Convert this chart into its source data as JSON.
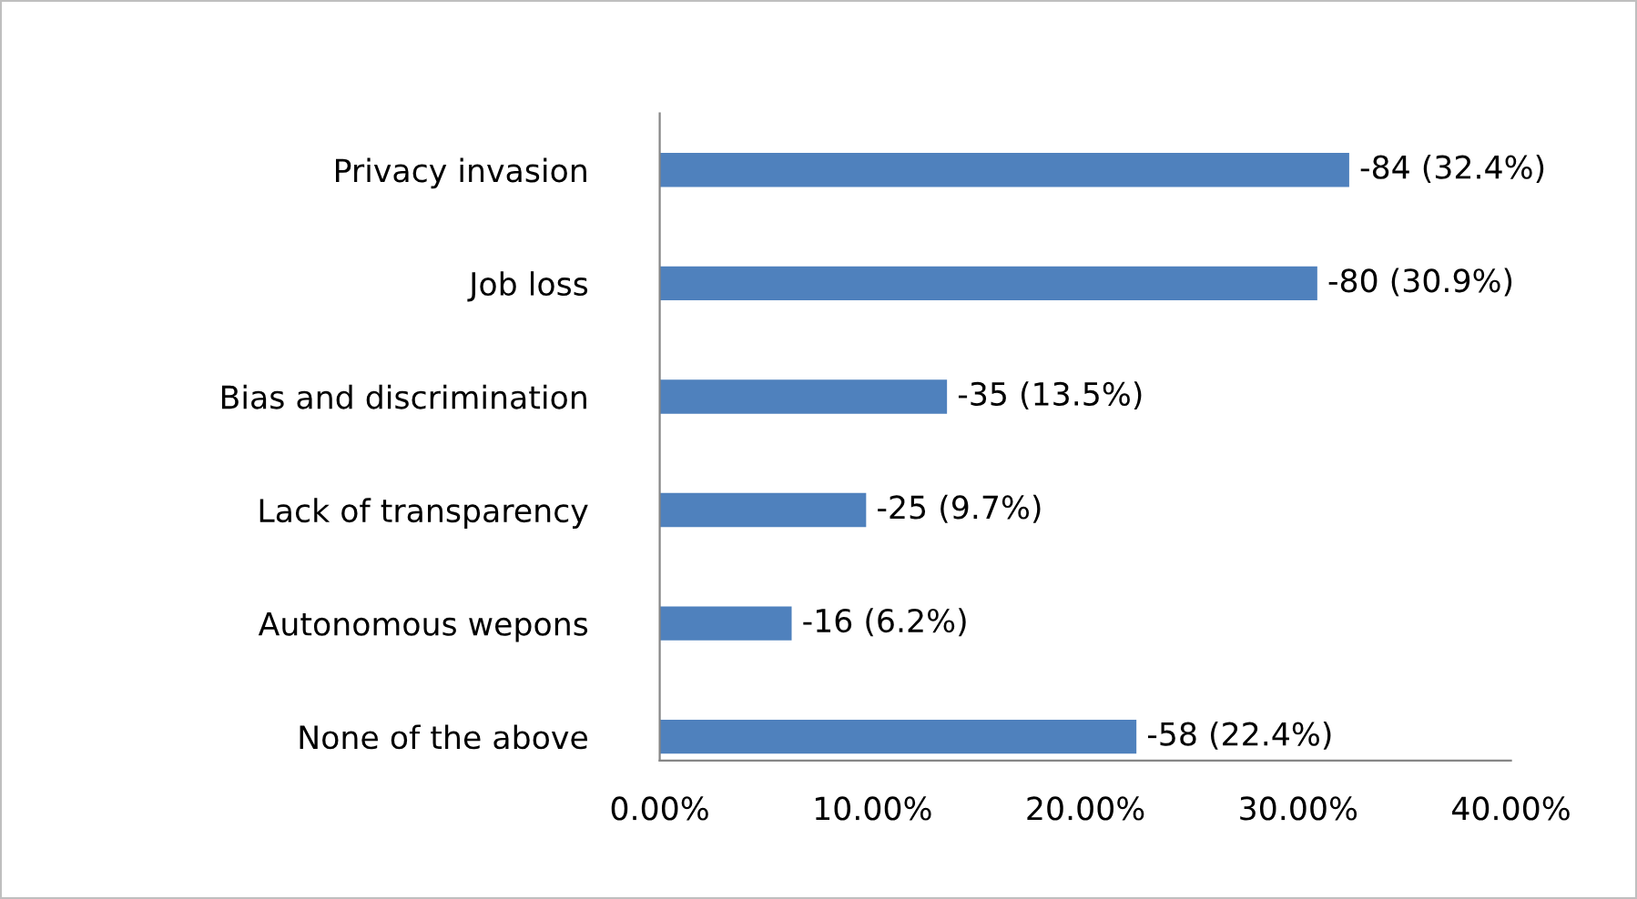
{
  "chart_data": {
    "type": "bar",
    "orientation": "horizontal",
    "categories": [
      "Privacy invasion",
      "Job loss",
      "Bias and discrimination",
      "Lack of transparency",
      "Autonomous wepons",
      "None of the above"
    ],
    "values": [
      32.4,
      30.9,
      13.5,
      9.7,
      6.2,
      22.4
    ],
    "value_labels": [
      "-84 (32.4%)",
      "-80 (30.9%)",
      "-35 (13.5%)",
      "-25 (9.7%)",
      "-16 (6.2%)",
      "-58 (22.4%)"
    ],
    "color": "#4f81bd",
    "xlim": [
      0,
      40
    ],
    "xticks": [
      {
        "value": 0,
        "label": "0.00%"
      },
      {
        "value": 10,
        "label": "10.00%"
      },
      {
        "value": 20,
        "label": "20.00%"
      },
      {
        "value": 30,
        "label": "30.00%"
      },
      {
        "value": 40,
        "label": "40.00%"
      }
    ],
    "grid": false,
    "legend": false
  }
}
